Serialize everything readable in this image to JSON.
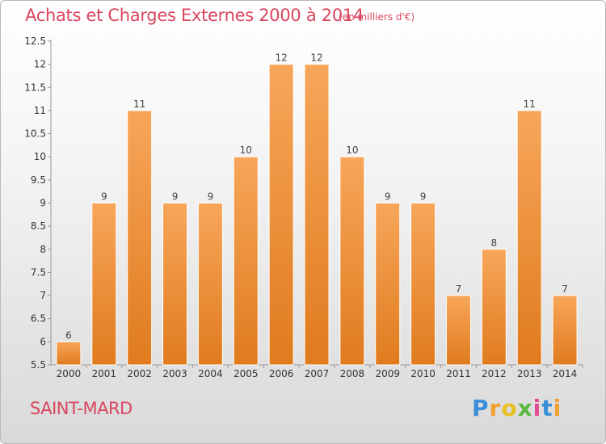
{
  "header": {
    "title": "Achats et Charges Externes 2000 à 2014",
    "unit": "(en milliers d'€)"
  },
  "footer": {
    "city": "SAINT-MARD",
    "logo": [
      "P",
      "r",
      "o",
      "x",
      "i",
      "t",
      "i"
    ]
  },
  "colors": {
    "bar_top": "#f7a65a",
    "bar_bottom": "#e07b1e",
    "title": "#d9465f"
  },
  "chart_data": {
    "type": "bar",
    "title": "Achats et Charges Externes 2000 à 2014",
    "subtitle": "(en milliers d'€)",
    "xlabel": "",
    "ylabel": "",
    "categories": [
      "2000",
      "2001",
      "2002",
      "2003",
      "2004",
      "2005",
      "2006",
      "2007",
      "2008",
      "2009",
      "2010",
      "2011",
      "2012",
      "2013",
      "2014"
    ],
    "values": [
      6,
      9,
      11,
      9,
      9,
      10,
      12,
      12,
      10,
      9,
      9,
      7,
      8,
      11,
      7
    ],
    "ylim": [
      5.5,
      12.5
    ],
    "yticks": [
      "5.5",
      "6",
      "6.5",
      "7",
      "7.5",
      "8",
      "8.5",
      "9",
      "9.5",
      "10",
      "10.5",
      "11",
      "11.5",
      "12",
      "12.5"
    ],
    "grid": false,
    "legend": "none"
  }
}
